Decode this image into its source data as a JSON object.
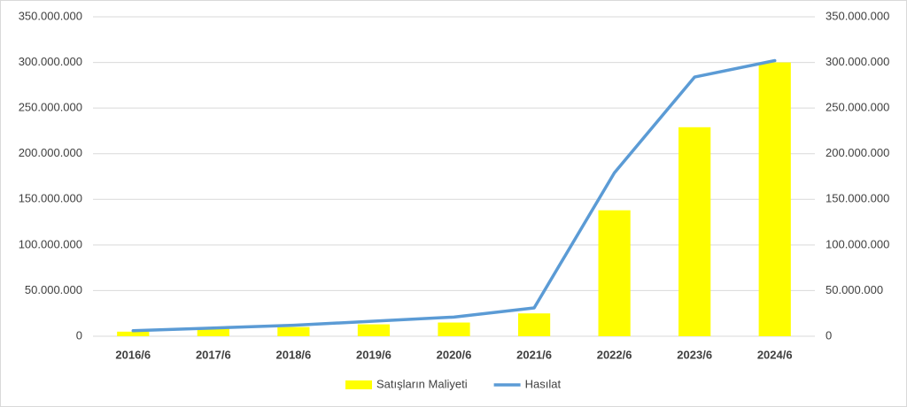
{
  "chart_data": {
    "type": "bar-line",
    "categories": [
      "2016/6",
      "2017/6",
      "2018/6",
      "2019/6",
      "2020/6",
      "2021/6",
      "2022/6",
      "2023/6",
      "2024/6"
    ],
    "series": [
      {
        "name": "Satışların Maliyeti",
        "type": "bar",
        "color": "#ffff00",
        "values": [
          5000000,
          9000000,
          10000000,
          13000000,
          15000000,
          25000000,
          138000000,
          229000000,
          300000000
        ]
      },
      {
        "name": "Hasılat",
        "type": "line",
        "axis": "y2",
        "color": "#5b9bd5",
        "values": [
          6000000,
          9000000,
          12000000,
          16500000,
          21000000,
          31000000,
          179000000,
          284000000,
          302000000
        ]
      }
    ],
    "ylim": [
      0,
      350000000
    ],
    "yticks": [
      0,
      {
        "value": 50000000,
        "label": "50.000.000"
      },
      {
        "value": 100000000,
        "label": "100.000.000"
      },
      {
        "value": 150000000,
        "label": "150.000.000"
      },
      {
        "value": 200000000,
        "label": "200.000.000"
      },
      {
        "value": 250000000,
        "label": "250.000.000"
      },
      {
        "value": 300000000,
        "label": "300.000.000"
      },
      {
        "value": 350000000,
        "label": "350.000.000"
      }
    ],
    "y2lim": [
      0,
      350000000
    ],
    "y2ticks": [
      0,
      {
        "value": 50000000,
        "label": "50.000.000"
      },
      {
        "value": 100000000,
        "label": "100.000.000"
      },
      {
        "value": 150000000,
        "label": "150.000.000"
      },
      {
        "value": 200000000,
        "label": "200.000.000"
      },
      {
        "value": 250000000,
        "label": "250.000.000"
      },
      {
        "value": 300000000,
        "label": "300.000.000"
      },
      {
        "value": 350000000,
        "label": "350.000.000"
      }
    ],
    "grid": true,
    "legend": "bottom"
  }
}
